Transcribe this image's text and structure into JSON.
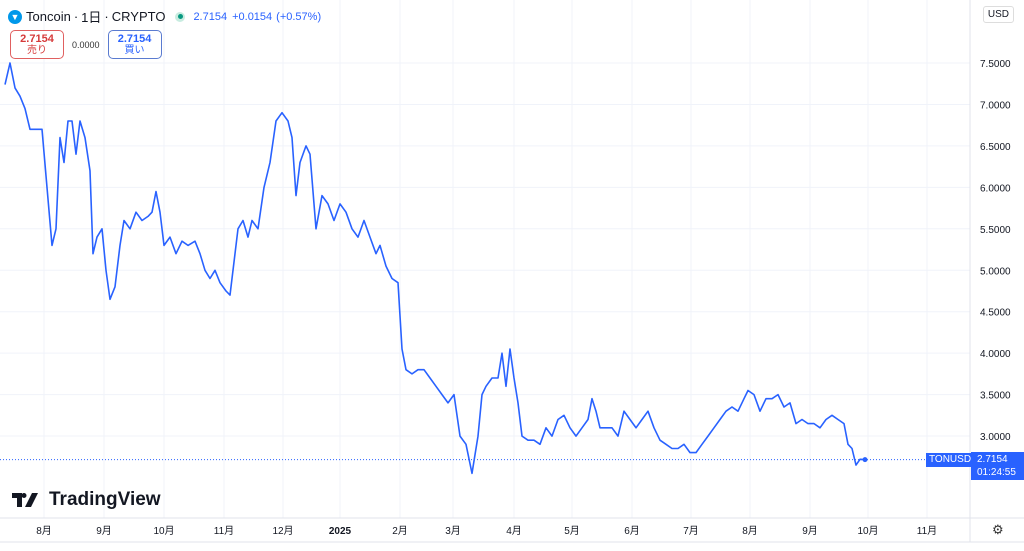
{
  "header": {
    "symbol": "Toncoin",
    "interval": "1日",
    "exchange": "CRYPTO",
    "separator": "·",
    "price": "2.7154",
    "change": "+0.0154",
    "change_pct": "(+0.57%)"
  },
  "trade": {
    "sell_price": "2.7154",
    "sell_label": "売り",
    "spread": "0.0000",
    "buy_price": "2.7154",
    "buy_label": "買い"
  },
  "currency": "USD",
  "price_tag": {
    "symbol": "TONUSD",
    "price": "2.7154",
    "countdown": "01:24:55"
  },
  "brand": "TradingView",
  "colors": {
    "line": "#2962ff",
    "grid": "#f0f3fa"
  },
  "chart_data": {
    "type": "line",
    "title": "Toncoin · 1日 · CRYPTO",
    "ylim": [
      2.5,
      7.5
    ],
    "y_ticks": [
      "7.5000",
      "7.0000",
      "6.5000",
      "6.0000",
      "5.5000",
      "5.0000",
      "4.5000",
      "4.0000",
      "3.5000",
      "3.0000"
    ],
    "x_ticks": [
      {
        "label": "8月",
        "day": 19.5
      },
      {
        "label": "9月",
        "day": 49.5
      },
      {
        "label": "10月",
        "day": 79.5
      },
      {
        "label": "11月",
        "day": 109.5
      },
      {
        "label": "12月",
        "day": 139
      },
      {
        "label": "2025",
        "day": 167.5
      },
      {
        "label": "2月",
        "day": 197.5
      },
      {
        "label": "3月",
        "day": 224
      },
      {
        "label": "4月",
        "day": 254.5
      },
      {
        "label": "5月",
        "day": 283.5
      },
      {
        "label": "6月",
        "day": 313.5
      },
      {
        "label": "7月",
        "day": 343
      },
      {
        "label": "8月",
        "day": 372.5
      },
      {
        "label": "9月",
        "day": 402.5
      },
      {
        "label": "10月",
        "day": 431.5
      },
      {
        "label": "11月",
        "day": 461
      }
    ],
    "points": [
      [
        0,
        7.24
      ],
      [
        2.5,
        7.5
      ],
      [
        5,
        7.2
      ],
      [
        7.5,
        7.1
      ],
      [
        10,
        6.95
      ],
      [
        12.5,
        6.7
      ],
      [
        15,
        6.7
      ],
      [
        18.5,
        6.7
      ],
      [
        21,
        6.0
      ],
      [
        23.5,
        5.3
      ],
      [
        25.5,
        5.5
      ],
      [
        27.5,
        6.6
      ],
      [
        29.5,
        6.3
      ],
      [
        31.5,
        6.8
      ],
      [
        33.5,
        6.8
      ],
      [
        35.5,
        6.4
      ],
      [
        37.5,
        6.8
      ],
      [
        40,
        6.6
      ],
      [
        42.5,
        6.2
      ],
      [
        44,
        5.2
      ],
      [
        46,
        5.4
      ],
      [
        48.5,
        5.5
      ],
      [
        50.5,
        5.0
      ],
      [
        52.5,
        4.65
      ],
      [
        55,
        4.8
      ],
      [
        57.5,
        5.3
      ],
      [
        59.5,
        5.6
      ],
      [
        62.5,
        5.5
      ],
      [
        65.5,
        5.7
      ],
      [
        68.5,
        5.6
      ],
      [
        71.5,
        5.65
      ],
      [
        73.5,
        5.7
      ],
      [
        75.5,
        5.95
      ],
      [
        77.5,
        5.7
      ],
      [
        79.5,
        5.3
      ],
      [
        82.5,
        5.4
      ],
      [
        85.5,
        5.2
      ],
      [
        88.5,
        5.35
      ],
      [
        91.5,
        5.3
      ],
      [
        95,
        5.35
      ],
      [
        97.5,
        5.2
      ],
      [
        100,
        5.0
      ],
      [
        102.5,
        4.9
      ],
      [
        105,
        5.0
      ],
      [
        107.5,
        4.85
      ],
      [
        110.5,
        4.75
      ],
      [
        112.5,
        4.7
      ],
      [
        114.5,
        5.1
      ],
      [
        116.5,
        5.5
      ],
      [
        119,
        5.6
      ],
      [
        121.5,
        5.4
      ],
      [
        123.5,
        5.6
      ],
      [
        126.5,
        5.5
      ],
      [
        129.5,
        6.0
      ],
      [
        132.5,
        6.3
      ],
      [
        135.5,
        6.8
      ],
      [
        138.5,
        6.9
      ],
      [
        141.5,
        6.8
      ],
      [
        143.5,
        6.6
      ],
      [
        145.5,
        5.9
      ],
      [
        147.5,
        6.3
      ],
      [
        150.5,
        6.5
      ],
      [
        152.5,
        6.4
      ],
      [
        155.5,
        5.5
      ],
      [
        158.5,
        5.9
      ],
      [
        161.5,
        5.8
      ],
      [
        164.5,
        5.6
      ],
      [
        167.5,
        5.8
      ],
      [
        170.5,
        5.7
      ],
      [
        173.5,
        5.5
      ],
      [
        176.5,
        5.4
      ],
      [
        179.5,
        5.6
      ],
      [
        182.5,
        5.4
      ],
      [
        185.5,
        5.2
      ],
      [
        187.5,
        5.3
      ],
      [
        190.5,
        5.05
      ],
      [
        193.5,
        4.9
      ],
      [
        196.5,
        4.85
      ],
      [
        198.5,
        4.05
      ],
      [
        200.5,
        3.8
      ],
      [
        203.5,
        3.75
      ],
      [
        206.5,
        3.8
      ],
      [
        209.5,
        3.8
      ],
      [
        212.5,
        3.7
      ],
      [
        215.5,
        3.6
      ],
      [
        218.5,
        3.5
      ],
      [
        221.5,
        3.4
      ],
      [
        224.5,
        3.5
      ],
      [
        227.5,
        3.0
      ],
      [
        230.5,
        2.9
      ],
      [
        233.5,
        2.55
      ],
      [
        236.5,
        3.0
      ],
      [
        238.5,
        3.5
      ],
      [
        240.5,
        3.6
      ],
      [
        243.5,
        3.7
      ],
      [
        246.5,
        3.7
      ],
      [
        248.5,
        4.0
      ],
      [
        250.5,
        3.6
      ],
      [
        252.5,
        4.05
      ],
      [
        254.5,
        3.7
      ],
      [
        256.5,
        3.4
      ],
      [
        258.5,
        3.0
      ],
      [
        261.5,
        2.95
      ],
      [
        264.5,
        2.95
      ],
      [
        267.5,
        2.9
      ],
      [
        270.5,
        3.1
      ],
      [
        273.5,
        3.0
      ],
      [
        276.5,
        3.2
      ],
      [
        279.5,
        3.25
      ],
      [
        282.5,
        3.1
      ],
      [
        285.5,
        3.0
      ],
      [
        288.5,
        3.1
      ],
      [
        291.5,
        3.2
      ],
      [
        293.5,
        3.45
      ],
      [
        295.5,
        3.3
      ],
      [
        297.5,
        3.1
      ],
      [
        300.5,
        3.1
      ],
      [
        303.5,
        3.1
      ],
      [
        306.5,
        3.0
      ],
      [
        309.5,
        3.3
      ],
      [
        312.5,
        3.2
      ],
      [
        315.5,
        3.1
      ],
      [
        318.5,
        3.2
      ],
      [
        321.5,
        3.3
      ],
      [
        324.5,
        3.1
      ],
      [
        327.5,
        2.95
      ],
      [
        330.5,
        2.9
      ],
      [
        333.5,
        2.85
      ],
      [
        336.5,
        2.85
      ],
      [
        339.5,
        2.9
      ],
      [
        342.5,
        2.8
      ],
      [
        345.5,
        2.8
      ],
      [
        348.5,
        2.9
      ],
      [
        351.5,
        3.0
      ],
      [
        354.5,
        3.1
      ],
      [
        357.5,
        3.2
      ],
      [
        360.5,
        3.3
      ],
      [
        363.5,
        3.35
      ],
      [
        366.5,
        3.3
      ],
      [
        369.5,
        3.45
      ],
      [
        371.5,
        3.55
      ],
      [
        374.5,
        3.5
      ],
      [
        377.5,
        3.3
      ],
      [
        380.5,
        3.45
      ],
      [
        383.5,
        3.45
      ],
      [
        386.5,
        3.5
      ],
      [
        389.5,
        3.35
      ],
      [
        392.5,
        3.4
      ],
      [
        395.5,
        3.15
      ],
      [
        398.5,
        3.2
      ],
      [
        401.5,
        3.15
      ],
      [
        404.5,
        3.15
      ],
      [
        407.5,
        3.1
      ],
      [
        410.5,
        3.2
      ],
      [
        413.5,
        3.25
      ],
      [
        416.5,
        3.2
      ],
      [
        419.5,
        3.15
      ],
      [
        421.5,
        2.9
      ],
      [
        423.5,
        2.85
      ],
      [
        425.5,
        2.65
      ],
      [
        427.5,
        2.72
      ],
      [
        430,
        2.7154
      ]
    ],
    "last_value": 2.7154
  }
}
